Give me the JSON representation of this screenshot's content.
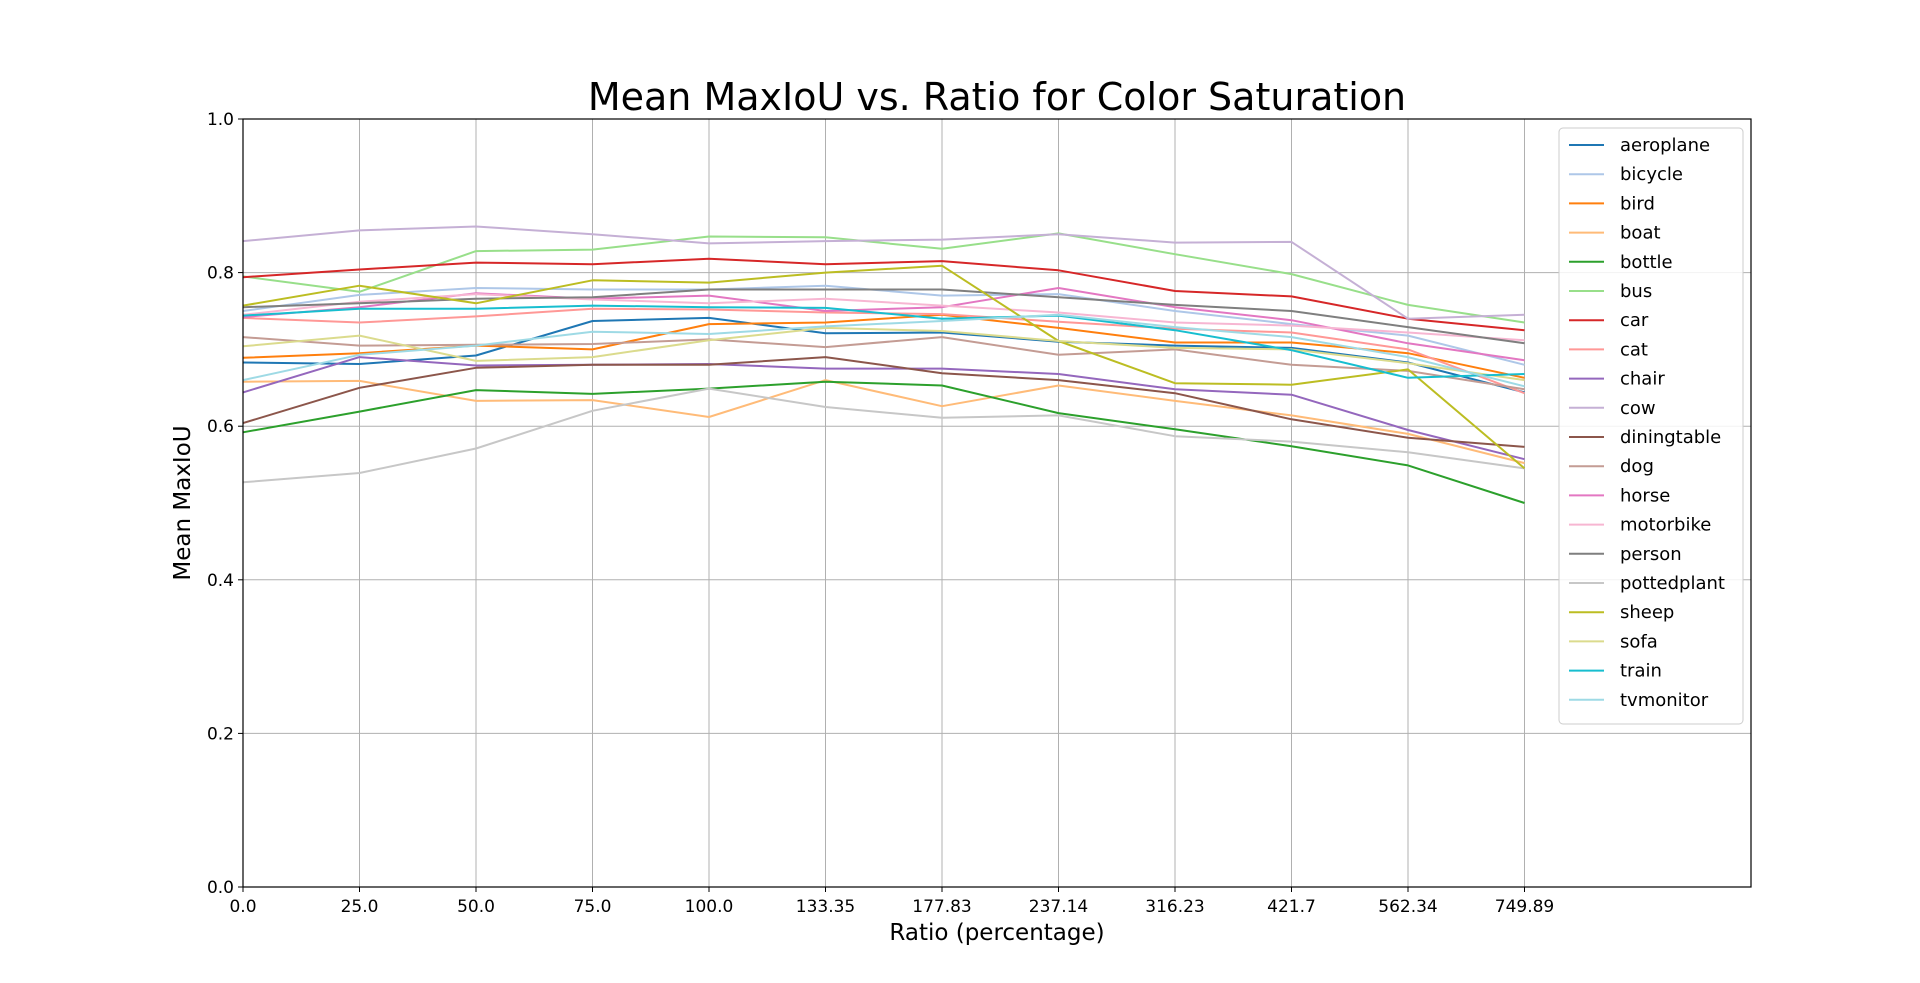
{
  "chart_data": {
    "type": "line",
    "title": "Mean MaxIoU vs. Ratio for Color Saturation",
    "xlabel": "Ratio (percentage)",
    "ylabel": "Mean MaxIoU",
    "x": [
      "0.0",
      "25.0",
      "50.0",
      "75.0",
      "100.0",
      "133.35",
      "177.83",
      "237.14",
      "316.23",
      "421.7",
      "562.34",
      "749.89"
    ],
    "ylim": [
      0.0,
      1.0
    ],
    "yticks": [
      "0.0",
      "0.2",
      "0.4",
      "0.6",
      "0.8",
      "1.0"
    ],
    "grid": true,
    "legend_position": "upper-right",
    "series": [
      {
        "name": "aeroplane",
        "color": "#1f77b4",
        "values": [
          0.683,
          0.681,
          0.692,
          0.737,
          0.741,
          0.721,
          0.722,
          0.71,
          0.705,
          0.702,
          0.683,
          0.644
        ]
      },
      {
        "name": "bicycle",
        "color": "#aec7e8",
        "values": [
          0.75,
          0.771,
          0.78,
          0.778,
          0.778,
          0.783,
          0.77,
          0.772,
          0.75,
          0.733,
          0.718,
          0.68
        ]
      },
      {
        "name": "bird",
        "color": "#ff7f0e",
        "values": [
          0.689,
          0.695,
          0.705,
          0.7,
          0.733,
          0.735,
          0.745,
          0.728,
          0.709,
          0.709,
          0.695,
          0.663
        ]
      },
      {
        "name": "boat",
        "color": "#ffbb78",
        "values": [
          0.658,
          0.659,
          0.633,
          0.634,
          0.612,
          0.66,
          0.626,
          0.653,
          0.633,
          0.614,
          0.59,
          0.552
        ]
      },
      {
        "name": "bottle",
        "color": "#2ca02c",
        "values": [
          0.592,
          0.619,
          0.647,
          0.642,
          0.649,
          0.658,
          0.653,
          0.617,
          0.596,
          0.574,
          0.549,
          0.5
        ]
      },
      {
        "name": "bus",
        "color": "#98df8a",
        "values": [
          0.795,
          0.775,
          0.828,
          0.83,
          0.847,
          0.846,
          0.831,
          0.851,
          0.824,
          0.798,
          0.758,
          0.735
        ]
      },
      {
        "name": "car",
        "color": "#d62728",
        "values": [
          0.794,
          0.804,
          0.813,
          0.811,
          0.818,
          0.811,
          0.815,
          0.803,
          0.776,
          0.769,
          0.74,
          0.725
        ]
      },
      {
        "name": "cat",
        "color": "#ff9896",
        "values": [
          0.741,
          0.735,
          0.743,
          0.753,
          0.752,
          0.748,
          0.746,
          0.736,
          0.727,
          0.722,
          0.7,
          0.643
        ]
      },
      {
        "name": "chair",
        "color": "#9467bd",
        "values": [
          0.644,
          0.69,
          0.679,
          0.68,
          0.681,
          0.675,
          0.675,
          0.668,
          0.648,
          0.641,
          0.595,
          0.557
        ]
      },
      {
        "name": "cow",
        "color": "#c5b0d5",
        "values": [
          0.841,
          0.855,
          0.86,
          0.85,
          0.838,
          0.841,
          0.843,
          0.85,
          0.839,
          0.84,
          0.74,
          0.745
        ]
      },
      {
        "name": "diningtable",
        "color": "#8c564b",
        "values": [
          0.604,
          0.65,
          0.676,
          0.68,
          0.68,
          0.69,
          0.669,
          0.66,
          0.643,
          0.609,
          0.585,
          0.573
        ]
      },
      {
        "name": "dog",
        "color": "#c49c94",
        "values": [
          0.716,
          0.705,
          0.706,
          0.707,
          0.713,
          0.703,
          0.716,
          0.693,
          0.7,
          0.68,
          0.672,
          0.648
        ]
      },
      {
        "name": "horse",
        "color": "#e377c2",
        "values": [
          0.742,
          0.755,
          0.773,
          0.766,
          0.77,
          0.75,
          0.755,
          0.78,
          0.755,
          0.738,
          0.708,
          0.686
        ]
      },
      {
        "name": "motorbike",
        "color": "#f7b6d2",
        "values": [
          0.745,
          0.762,
          0.772,
          0.765,
          0.76,
          0.766,
          0.757,
          0.748,
          0.735,
          0.731,
          0.722,
          0.712
        ]
      },
      {
        "name": "person",
        "color": "#7f7f7f",
        "values": [
          0.755,
          0.76,
          0.766,
          0.768,
          0.778,
          0.778,
          0.778,
          0.768,
          0.758,
          0.75,
          0.729,
          0.708
        ]
      },
      {
        "name": "pottedplant",
        "color": "#c7c7c7",
        "values": [
          0.527,
          0.539,
          0.571,
          0.62,
          0.649,
          0.625,
          0.611,
          0.614,
          0.587,
          0.58,
          0.566,
          0.545
        ]
      },
      {
        "name": "sheep",
        "color": "#bcbd22",
        "values": [
          0.757,
          0.783,
          0.76,
          0.79,
          0.787,
          0.8,
          0.809,
          0.711,
          0.656,
          0.654,
          0.674,
          0.545
        ]
      },
      {
        "name": "sofa",
        "color": "#dbdb8d",
        "values": [
          0.704,
          0.718,
          0.685,
          0.69,
          0.712,
          0.728,
          0.724,
          0.711,
          0.702,
          0.7,
          0.682,
          0.66
        ]
      },
      {
        "name": "train",
        "color": "#17becf",
        "values": [
          0.744,
          0.753,
          0.753,
          0.757,
          0.755,
          0.754,
          0.74,
          0.744,
          0.725,
          0.699,
          0.663,
          0.668
        ]
      },
      {
        "name": "tvmonitor",
        "color": "#9edae5",
        "values": [
          0.66,
          0.693,
          0.705,
          0.723,
          0.72,
          0.73,
          0.737,
          0.745,
          0.729,
          0.716,
          0.69,
          0.652
        ]
      }
    ]
  }
}
